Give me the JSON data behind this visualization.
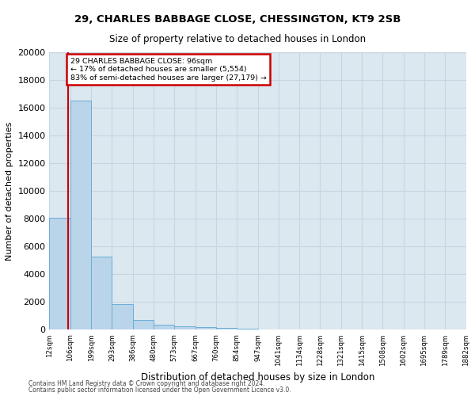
{
  "title1": "29, CHARLES BABBAGE CLOSE, CHESSINGTON, KT9 2SB",
  "title2": "Size of property relative to detached houses in London",
  "xlabel": "Distribution of detached houses by size in London",
  "ylabel": "Number of detached properties",
  "bar_values": [
    8100,
    16500,
    5300,
    1850,
    700,
    350,
    280,
    200,
    150,
    80,
    50,
    30,
    20,
    15,
    10,
    8,
    6,
    5,
    4,
    3
  ],
  "bin_labels": [
    "12sqm",
    "106sqm",
    "199sqm",
    "293sqm",
    "386sqm",
    "480sqm",
    "573sqm",
    "667sqm",
    "760sqm",
    "854sqm",
    "947sqm",
    "1041sqm",
    "1134sqm",
    "1228sqm",
    "1321sqm",
    "1415sqm",
    "1508sqm",
    "1602sqm",
    "1695sqm",
    "1789sqm",
    "1882sqm"
  ],
  "bar_color": "#bad4ea",
  "bar_edge_color": "#6aaed6",
  "annotation_title": "29 CHARLES BABBAGE CLOSE: 96sqm",
  "annotation_line1": "← 17% of detached houses are smaller (5,554)",
  "annotation_line2": "83% of semi-detached houses are larger (27,179) →",
  "annotation_box_color": "#cc0000",
  "vline_color": "#cc0000",
  "vline_x": 0.88,
  "ylim": [
    0,
    20000
  ],
  "yticks": [
    0,
    2000,
    4000,
    6000,
    8000,
    10000,
    12000,
    14000,
    16000,
    18000,
    20000
  ],
  "grid_color": "#c8d4e0",
  "bg_color": "#dce8f0",
  "footnote1": "Contains HM Land Registry data © Crown copyright and database right 2024.",
  "footnote2": "Contains public sector information licensed under the Open Government Licence v3.0."
}
